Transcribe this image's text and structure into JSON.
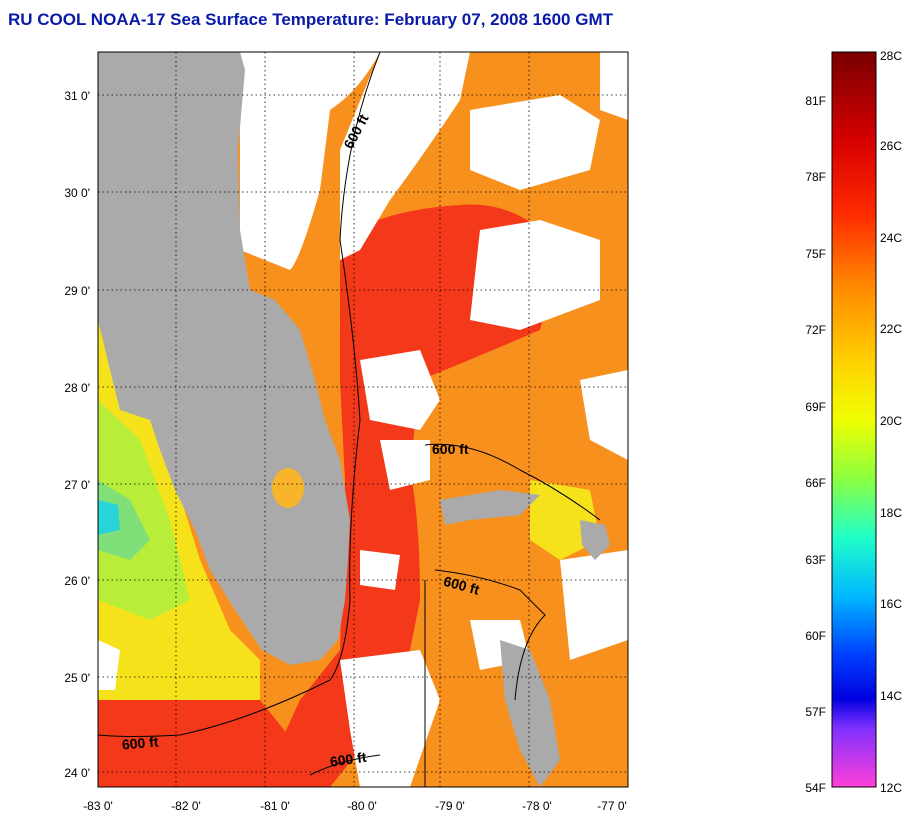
{
  "title": "RU COOL  NOAA-17  Sea Surface Temperature:  February 07, 2008 1600 GMT",
  "map": {
    "lat_labels": [
      "31 0'",
      "30 0'",
      "29 0'",
      "28 0'",
      "27 0'",
      "26 0'",
      "25 0'",
      "24 0'"
    ],
    "lon_labels": [
      "-83 0'",
      "-82 0'",
      "-81 0'",
      "-80 0'",
      "-79 0'",
      "-78 0'",
      "-77 0'"
    ],
    "contour_labels": [
      "600 ft",
      "600 ft",
      "600 ft",
      "600 ft",
      "600 ft"
    ],
    "colors": {
      "land": "#aaaaaa",
      "cloud": "#ffffff",
      "warm": "#f4381a",
      "orange": "#f8901e",
      "yellow": "#f5e21a",
      "cool": "#7fe07a",
      "cyan": "#29d4d8"
    }
  },
  "colorbar": {
    "celsius_labels": [
      "28C",
      "26C",
      "24C",
      "22C",
      "20C",
      "18C",
      "16C",
      "14C",
      "12C"
    ],
    "fahrenheit_labels": [
      "81F",
      "78F",
      "75F",
      "72F",
      "69F",
      "66F",
      "63F",
      "60F",
      "57F",
      "54F"
    ]
  }
}
